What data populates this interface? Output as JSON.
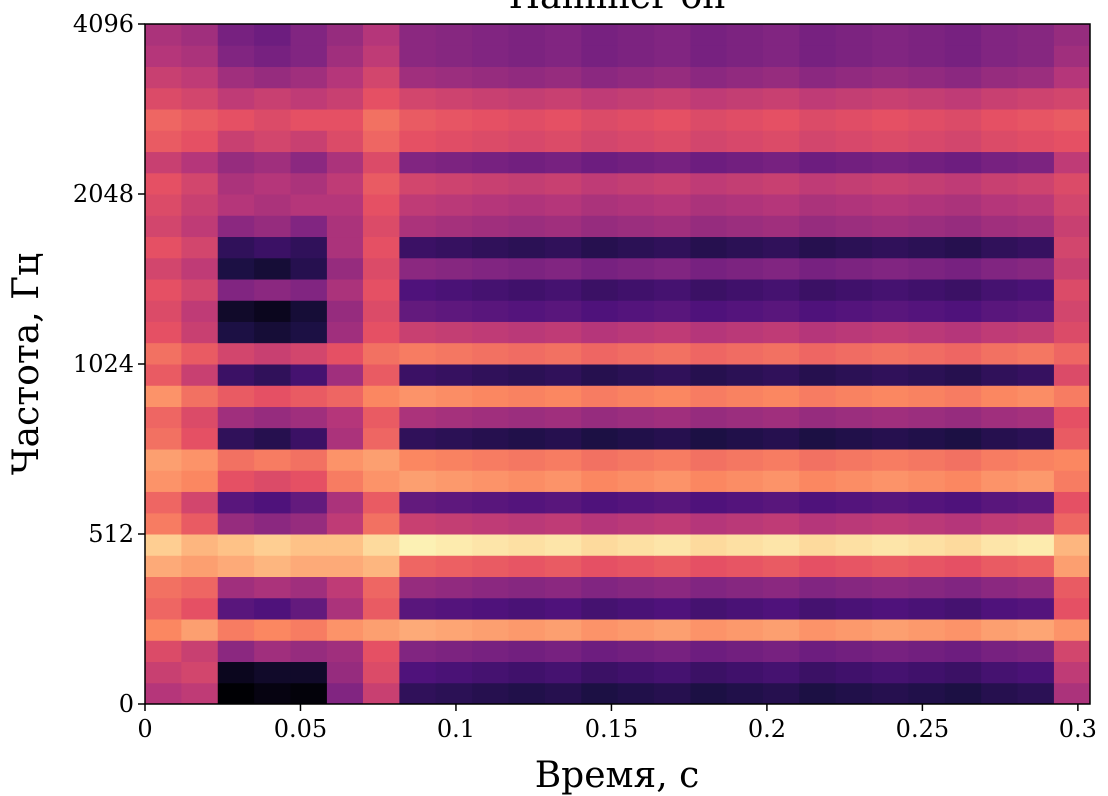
{
  "chart_data": {
    "type": "heatmap",
    "title": "Hammer-on",
    "x_label": "Время, с",
    "y_label": "Частота, Гц",
    "x_bins": [
      0,
      0.0117,
      0.0234,
      0.0351,
      0.0468,
      0.0585,
      0.0701,
      0.0818,
      0.0935,
      0.1052,
      0.1169,
      0.1286,
      0.1403,
      0.152,
      0.1637,
      0.1754,
      0.187,
      0.1987,
      0.2104,
      0.2221,
      0.2338,
      0.2455,
      0.2572,
      0.2689,
      0.2806,
      0.2923,
      0.3039
    ],
    "y_bins": [
      0,
      64,
      128,
      192,
      256,
      320,
      384,
      448,
      512,
      558,
      609,
      664,
      724,
      790,
      861,
      939,
      1024,
      1117,
      1218,
      1328,
      1448,
      1579,
      1722,
      1878,
      2048,
      2233,
      2435,
      2656,
      2896,
      3158,
      3444,
      3756,
      4096
    ],
    "xlim": [
      0,
      0.3039
    ],
    "xticks": [
      0,
      0.05,
      0.1,
      0.15,
      0.2,
      0.25,
      0.3
    ],
    "ylim": [
      0,
      4096
    ],
    "yticks": [
      0,
      512,
      1024,
      2048,
      4096
    ],
    "yscale": "symlog",
    "linthresh": 512,
    "base": 2,
    "colormap": "magma",
    "vmin": -80,
    "vmax": 0,
    "values": [
      [
        -40,
        -38,
        -80,
        -78,
        -79,
        -50,
        -36,
        -66,
        -67,
        -68,
        -69,
        -68,
        -70,
        -69,
        -68,
        -70,
        -69,
        -68,
        -70,
        -69,
        -68,
        -69,
        -70,
        -68,
        -67,
        -42
      ],
      [
        -36,
        -34,
        -76,
        -74,
        -74,
        -46,
        -32,
        -60,
        -61,
        -62,
        -63,
        -62,
        -64,
        -63,
        -62,
        -64,
        -63,
        -62,
        -64,
        -63,
        -62,
        -63,
        -64,
        -62,
        -61,
        -38
      ],
      [
        -32,
        -36,
        -48,
        -44,
        -46,
        -44,
        -30,
        -50,
        -51,
        -52,
        -53,
        -52,
        -54,
        -53,
        -52,
        -54,
        -53,
        -52,
        -54,
        -53,
        -52,
        -53,
        -54,
        -52,
        -51,
        -34
      ],
      [
        -20,
        -16,
        -22,
        -20,
        -22,
        -18,
        -16,
        -14,
        -15,
        -16,
        -17,
        -16,
        -18,
        -17,
        -16,
        -18,
        -17,
        -16,
        -18,
        -17,
        -16,
        -17,
        -18,
        -16,
        -15,
        -18
      ],
      [
        -26,
        -30,
        -58,
        -60,
        -56,
        -42,
        -28,
        -58,
        -59,
        -60,
        -61,
        -60,
        -62,
        -61,
        -60,
        -62,
        -61,
        -60,
        -62,
        -61,
        -60,
        -61,
        -62,
        -60,
        -59,
        -30
      ],
      [
        -24,
        -26,
        -44,
        -42,
        -44,
        -38,
        -26,
        -46,
        -47,
        -48,
        -49,
        -48,
        -50,
        -49,
        -48,
        -50,
        -49,
        -48,
        -50,
        -49,
        -48,
        -49,
        -50,
        -48,
        -47,
        -28
      ],
      [
        -14,
        -16,
        -14,
        -12,
        -14,
        -14,
        -12,
        -26,
        -27,
        -28,
        -29,
        -28,
        -30,
        -29,
        -28,
        -30,
        -29,
        -28,
        -30,
        -29,
        -28,
        -29,
        -30,
        -28,
        -27,
        -16
      ],
      [
        -8,
        -12,
        -10,
        -8,
        -10,
        -10,
        -6,
        -2,
        -3,
        -4,
        -5,
        -4,
        -6,
        -5,
        -4,
        -6,
        -5,
        -4,
        -6,
        -5,
        -4,
        -5,
        -6,
        -4,
        -3,
        -12
      ],
      [
        -22,
        -28,
        -46,
        -48,
        -46,
        -38,
        -24,
        -36,
        -37,
        -38,
        -39,
        -38,
        -40,
        -39,
        -38,
        -40,
        -39,
        -38,
        -40,
        -39,
        -38,
        -39,
        -40,
        -38,
        -37,
        -26
      ],
      [
        -26,
        -34,
        -58,
        -60,
        -56,
        -42,
        -28,
        -56,
        -57,
        -58,
        -59,
        -58,
        -60,
        -59,
        -58,
        -60,
        -59,
        -58,
        -60,
        -59,
        -58,
        -59,
        -60,
        -58,
        -57,
        -30
      ],
      [
        -18,
        -20,
        -30,
        -32,
        -30,
        -22,
        -18,
        -16,
        -17,
        -18,
        -19,
        -18,
        -20,
        -19,
        -18,
        -20,
        -19,
        -18,
        -20,
        -19,
        -18,
        -19,
        -20,
        -18,
        -17,
        -22
      ],
      [
        -16,
        -18,
        -24,
        -22,
        -24,
        -18,
        -16,
        -20,
        -21,
        -22,
        -23,
        -22,
        -24,
        -23,
        -22,
        -24,
        -23,
        -22,
        -24,
        -23,
        -22,
        -23,
        -24,
        -22,
        -21,
        -20
      ],
      [
        -24,
        -30,
        -66,
        -68,
        -64,
        -42,
        -26,
        -66,
        -67,
        -68,
        -69,
        -68,
        -70,
        -69,
        -68,
        -70,
        -69,
        -68,
        -70,
        -69,
        -68,
        -69,
        -70,
        -68,
        -67,
        -28
      ],
      [
        -26,
        -32,
        -44,
        -46,
        -44,
        -40,
        -28,
        -42,
        -43,
        -44,
        -45,
        -44,
        -46,
        -45,
        -44,
        -46,
        -45,
        -44,
        -46,
        -45,
        -44,
        -45,
        -46,
        -44,
        -43,
        -30
      ],
      [
        -18,
        -24,
        -28,
        -30,
        -28,
        -26,
        -20,
        -18,
        -19,
        -20,
        -21,
        -20,
        -22,
        -21,
        -20,
        -22,
        -21,
        -20,
        -22,
        -21,
        -20,
        -21,
        -22,
        -20,
        -19,
        -22
      ],
      [
        -28,
        -36,
        -64,
        -66,
        -62,
        -44,
        -28,
        -64,
        -65,
        -66,
        -67,
        -66,
        -68,
        -67,
        -66,
        -68,
        -67,
        -66,
        -68,
        -67,
        -66,
        -67,
        -68,
        -66,
        -65,
        -32
      ],
      [
        -24,
        -28,
        -34,
        -36,
        -34,
        -30,
        -24,
        -22,
        -23,
        -24,
        -25,
        -24,
        -26,
        -25,
        -24,
        -26,
        -25,
        -24,
        -26,
        -25,
        -24,
        -25,
        -26,
        -24,
        -23,
        -26
      ],
      [
        -30,
        -36,
        -70,
        -72,
        -70,
        -44,
        -30,
        -36,
        -37,
        -38,
        -39,
        -38,
        -40,
        -39,
        -38,
        -40,
        -39,
        -38,
        -40,
        -39,
        -38,
        -39,
        -40,
        -38,
        -37,
        -32
      ],
      [
        -32,
        -38,
        -74,
        -76,
        -72,
        -46,
        -32,
        -56,
        -57,
        -58,
        -59,
        -58,
        -60,
        -59,
        -58,
        -60,
        -59,
        -58,
        -60,
        -59,
        -58,
        -59,
        -60,
        -58,
        -57,
        -34
      ],
      [
        -30,
        -34,
        -50,
        -48,
        -50,
        -42,
        -30,
        -60,
        -61,
        -62,
        -63,
        -62,
        -64,
        -63,
        -62,
        -64,
        -63,
        -62,
        -64,
        -63,
        -62,
        -63,
        -64,
        -62,
        -61,
        -32
      ],
      [
        -34,
        -38,
        -70,
        -72,
        -68,
        -46,
        -32,
        -48,
        -49,
        -50,
        -51,
        -50,
        -52,
        -51,
        -50,
        -52,
        -51,
        -50,
        -52,
        -51,
        -50,
        -51,
        -52,
        -50,
        -49,
        -36
      ],
      [
        -30,
        -34,
        -66,
        -64,
        -66,
        -42,
        -30,
        -64,
        -65,
        -66,
        -67,
        -66,
        -68,
        -67,
        -66,
        -68,
        -67,
        -66,
        -68,
        -67,
        -66,
        -67,
        -68,
        -66,
        -65,
        -34
      ],
      [
        -34,
        -38,
        -48,
        -46,
        -50,
        -42,
        -32,
        -42,
        -43,
        -44,
        -45,
        -44,
        -46,
        -45,
        -44,
        -46,
        -45,
        -44,
        -46,
        -45,
        -44,
        -45,
        -46,
        -44,
        -43,
        -36
      ],
      [
        -32,
        -36,
        -40,
        -42,
        -40,
        -40,
        -30,
        -38,
        -39,
        -40,
        -41,
        -40,
        -42,
        -41,
        -40,
        -42,
        -41,
        -40,
        -42,
        -41,
        -40,
        -41,
        -42,
        -40,
        -39,
        -34
      ],
      [
        -30,
        -34,
        -42,
        -40,
        -42,
        -38,
        -28,
        -34,
        -35,
        -36,
        -37,
        -36,
        -38,
        -37,
        -36,
        -38,
        -37,
        -36,
        -38,
        -37,
        -36,
        -37,
        -38,
        -36,
        -35,
        -32
      ],
      [
        -36,
        -40,
        -46,
        -44,
        -48,
        -42,
        -32,
        -50,
        -51,
        -52,
        -53,
        -52,
        -54,
        -53,
        -52,
        -54,
        -53,
        -52,
        -54,
        -53,
        -52,
        -53,
        -54,
        -52,
        -51,
        -38
      ],
      [
        -28,
        -30,
        -36,
        -34,
        -36,
        -32,
        -26,
        -30,
        -31,
        -32,
        -33,
        -32,
        -34,
        -33,
        -32,
        -34,
        -33,
        -32,
        -34,
        -33,
        -32,
        -33,
        -34,
        -32,
        -31,
        -30
      ],
      [
        -26,
        -28,
        -30,
        -32,
        -30,
        -30,
        -24,
        -28,
        -29,
        -30,
        -31,
        -30,
        -32,
        -31,
        -30,
        -32,
        -31,
        -30,
        -32,
        -31,
        -30,
        -31,
        -32,
        -30,
        -29,
        -28
      ],
      [
        -32,
        -34,
        -38,
        -36,
        -38,
        -36,
        -30,
        -34,
        -35,
        -36,
        -37,
        -36,
        -38,
        -37,
        -36,
        -38,
        -37,
        -36,
        -38,
        -37,
        -36,
        -37,
        -38,
        -36,
        -35,
        -34
      ],
      [
        -36,
        -38,
        -44,
        -46,
        -44,
        -40,
        -34,
        -44,
        -45,
        -46,
        -47,
        -46,
        -48,
        -47,
        -46,
        -48,
        -47,
        -46,
        -48,
        -47,
        -46,
        -47,
        -48,
        -46,
        -45,
        -40
      ],
      [
        -40,
        -42,
        -50,
        -52,
        -50,
        -44,
        -38,
        -48,
        -49,
        -50,
        -51,
        -50,
        -52,
        -51,
        -50,
        -52,
        -51,
        -50,
        -52,
        -51,
        -50,
        -51,
        -52,
        -50,
        -49,
        -44
      ],
      [
        -42,
        -44,
        -52,
        -54,
        -50,
        -46,
        -40,
        -48,
        -49,
        -50,
        -51,
        -50,
        -52,
        -51,
        -50,
        -52,
        -51,
        -50,
        -52,
        -51,
        -50,
        -51,
        -52,
        -50,
        -49,
        -46
      ]
    ]
  }
}
